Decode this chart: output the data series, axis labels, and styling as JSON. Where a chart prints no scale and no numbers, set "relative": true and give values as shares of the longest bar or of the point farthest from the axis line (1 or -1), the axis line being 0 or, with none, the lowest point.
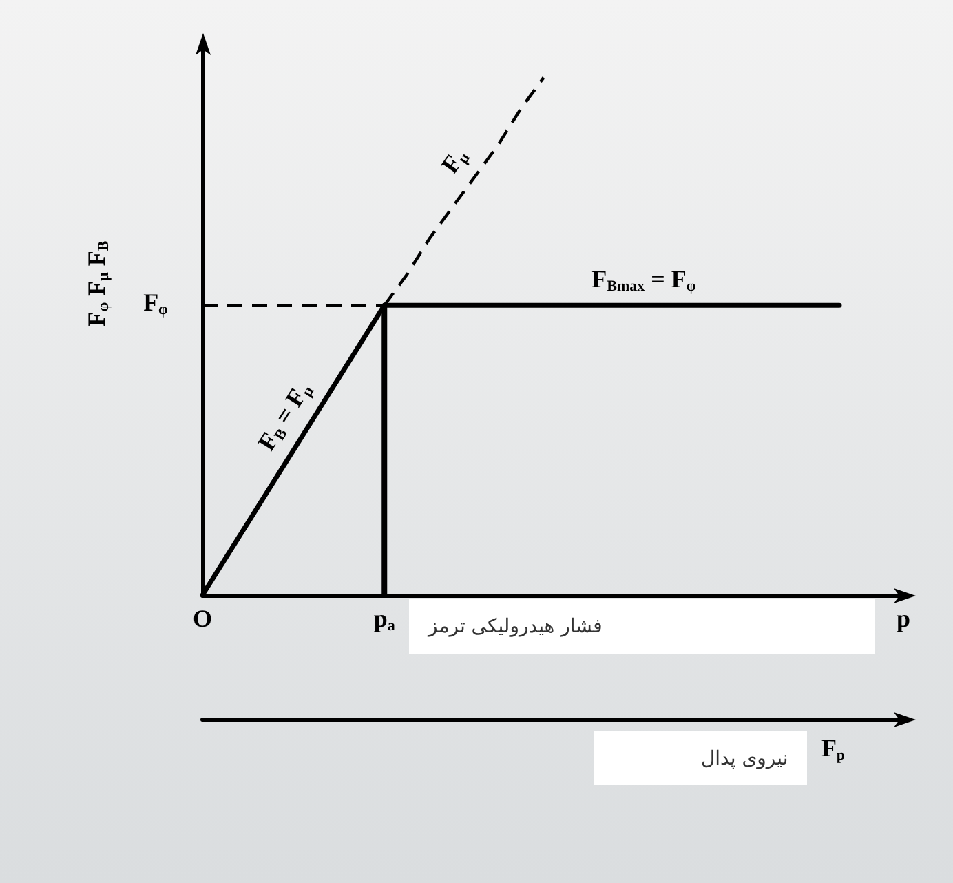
{
  "chart_data": {
    "type": "line",
    "relative": true,
    "xlabel": "p",
    "x2label": "F$_{p}$",
    "ylabel": "F$_{φ}$ F$_{μ}$ F$_{B}$",
    "categories": [
      "O",
      null,
      null,
      null,
      null,
      null,
      null,
      null,
      "p$_{a}$",
      null,
      null,
      null,
      null,
      null,
      null,
      null,
      null,
      null,
      null,
      null,
      null,
      null,
      null,
      null,
      null,
      null,
      null,
      null,
      null,
      null,
      null,
      null
    ],
    "series": [
      {
        "name": "F$_{B}$ = F$_{μ}$",
        "color": "#000000",
        "values": [
          0,
          0.07,
          0.14,
          0.21,
          0.28,
          0.35,
          0.42,
          0.49,
          0.56,
          null,
          null,
          null,
          null,
          null,
          null,
          null,
          null,
          null,
          null,
          null,
          null,
          null,
          null,
          null,
          null,
          null,
          null,
          null,
          null,
          null,
          null,
          null
        ]
      },
      {
        "name": "F$_{Bmax}$ = F$_{φ}$",
        "color": "#000000",
        "values": [
          null,
          null,
          null,
          null,
          null,
          null,
          null,
          null,
          0.56,
          0.56,
          0.56,
          0.56,
          0.56,
          0.56,
          0.56,
          0.56,
          0.56,
          0.56,
          0.56,
          0.56,
          0.56,
          0.56,
          0.56,
          0.56,
          0.56,
          0.56,
          0.56,
          0.56,
          0.56,
          null,
          null,
          null
        ]
      },
      {
        "name": "F$_{μ}$",
        "color": "#000000",
        "line_style": "dashed",
        "values": [
          null,
          null,
          null,
          null,
          null,
          null,
          null,
          null,
          0.56,
          0.62,
          0.69,
          0.75,
          0.81,
          0.87,
          0.94,
          1,
          null,
          null,
          null,
          null,
          null,
          null,
          null,
          null,
          null,
          null,
          null,
          null,
          null,
          null,
          null,
          null
        ]
      },
      {
        "type": "bar",
        "color": "#000000",
        "values": [
          null,
          null,
          null,
          null,
          null,
          null,
          null,
          null,
          0.56,
          null,
          null,
          null,
          null,
          null,
          null,
          null,
          null,
          null,
          null,
          null,
          null,
          null,
          null,
          null,
          null,
          null,
          null,
          null,
          null,
          null,
          null,
          null
        ]
      },
      {
        "color": "#000000",
        "line_style": "dashed",
        "values": [
          0.56,
          0.56,
          0.56,
          0.56,
          0.56,
          0.56,
          0.56,
          0.56,
          0.56,
          null,
          null,
          null,
          null,
          null,
          null,
          null,
          null,
          null,
          null,
          null,
          null,
          null,
          null,
          null,
          null,
          null,
          null,
          null,
          null,
          null,
          null,
          null
        ]
      }
    ],
    "annotations": [
      {
        "text": "F$_{φ}$",
        "x": "O",
        "y": 0.56
      },
      "فشار هیدرولیکی ترمز",
      "نیروی پدال"
    ]
  }
}
